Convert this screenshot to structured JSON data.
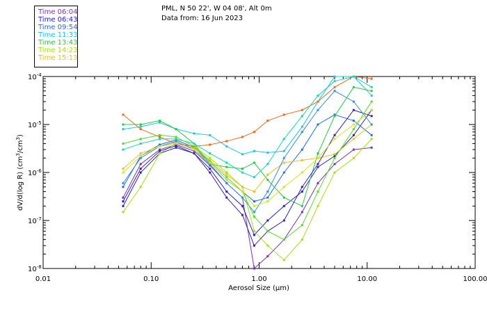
{
  "chart_data": {
    "type": "line",
    "title_line1": "PML, N 50 22', W 04 08', Alt 0m",
    "title_line2": "Data from: 16 Jun 2023",
    "xlabel": "Aerosol Size (µm)",
    "ylabel_main": "dV/d(log R) (cm",
    "ylabel_sup1": "3",
    "ylabel_mid": "/cm",
    "ylabel_sup2": "3",
    "ylabel_end": ")",
    "x_scale": "log",
    "y_scale": "log",
    "xlim": [
      0.01,
      100
    ],
    "ylim": [
      1e-08,
      0.0001
    ],
    "x_ticks": [
      {
        "v": 0.01,
        "label": "0.01"
      },
      {
        "v": 0.1,
        "label": "0.10"
      },
      {
        "v": 1,
        "label": "1.00"
      },
      {
        "v": 10,
        "label": "10.00"
      },
      {
        "v": 100,
        "label": "100.00"
      }
    ],
    "y_ticks": [
      {
        "v": 1e-08,
        "base": "10",
        "exp": "-8"
      },
      {
        "v": 1e-07,
        "base": "10",
        "exp": "-7"
      },
      {
        "v": 1e-06,
        "base": "10",
        "exp": "-6"
      },
      {
        "v": 1e-05,
        "base": "10",
        "exp": "-5"
      },
      {
        "v": 0.0001,
        "base": "10",
        "exp": "-4"
      }
    ],
    "x": [
      0.055,
      0.08,
      0.12,
      0.17,
      0.25,
      0.35,
      0.5,
      0.7,
      0.9,
      1.2,
      1.7,
      2.5,
      3.5,
      5,
      7.5,
      11
    ],
    "series": [
      {
        "name": "Time 06:04",
        "color": "#7b2fbf",
        "values": [
          3e-07,
          1.5e-06,
          3e-06,
          3.8e-06,
          2.8e-06,
          1.4e-06,
          6e-07,
          3e-07,
          1e-08,
          1.8e-08,
          4e-08,
          1.5e-07,
          6e-07,
          1.5e-06,
          3e-06,
          3.3e-06
        ]
      },
      {
        "name": "Time 06:43",
        "color": "#2222cc",
        "values": [
          2e-07,
          1e-06,
          2.5e-06,
          3.3e-06,
          2.5e-06,
          1.2e-06,
          4e-07,
          2e-07,
          5e-08,
          1e-07,
          2e-07,
          4e-07,
          1.3e-06,
          2.2e-06,
          6e-06,
          2e-05
        ]
      },
      {
        "name": "Time 09:54",
        "color": "#1e6ee8",
        "values": [
          5e-07,
          2.2e-06,
          3.8e-06,
          4.8e-06,
          3.3e-06,
          1.6e-06,
          7e-07,
          4e-07,
          2.5e-07,
          3e-07,
          1e-06,
          3e-06,
          1e-05,
          1.6e-05,
          1.2e-05,
          6e-06
        ]
      },
      {
        "name": "Time 11:33",
        "color": "#19c7e0",
        "values": [
          8e-06,
          9e-06,
          1.1e-05,
          8e-06,
          6.5e-06,
          6e-06,
          3.5e-06,
          2.4e-06,
          2.8e-06,
          2.6e-06,
          2.8e-06,
          9e-06,
          3e-05,
          0.0001,
          0.0001,
          4e-05
        ]
      },
      {
        "name": "Time 13:43",
        "color": "#22cc44",
        "values": [
          1e-05,
          1e-05,
          1.2e-05,
          8e-06,
          4e-06,
          1.5e-06,
          1.3e-06,
          1.2e-06,
          1.6e-06,
          7e-07,
          3e-07,
          2e-07,
          2.5e-06,
          1.5e-05,
          6e-05,
          5e-05
        ]
      },
      {
        "name": "Time 14:23",
        "color": "#a8e010",
        "values": [
          1.5e-07,
          5e-07,
          2.5e-06,
          4e-06,
          3.5e-06,
          2e-06,
          1e-06,
          5e-07,
          6e-08,
          3e-08,
          1.5e-08,
          4e-08,
          2e-07,
          1e-06,
          2e-06,
          5e-06
        ]
      },
      {
        "name": "Time 15:13",
        "color": "#e8c21c",
        "values": [
          1.2e-06,
          2.5e-06,
          3.5e-06,
          4.2e-06,
          3.2e-06,
          1.8e-06,
          9e-07,
          5e-07,
          4e-07,
          9e-07,
          1.6e-06,
          1.8e-06,
          2e-06,
          2.4e-06,
          5e-06,
          1e-05
        ]
      },
      {
        "name": "",
        "color": "#ee6a1c",
        "values": [
          1.6e-05,
          8e-06,
          5.5e-06,
          4e-06,
          3.5e-06,
          3.8e-06,
          4.5e-06,
          5.5e-06,
          7e-06,
          1.2e-05,
          1.6e-05,
          2e-05,
          3e-05,
          6e-05,
          0.0001,
          9e-05
        ]
      },
      {
        "name": "",
        "color": "#3a1fb8",
        "values": [
          2.5e-07,
          1.2e-06,
          2.8e-06,
          3.6e-06,
          2.5e-06,
          1e-06,
          3e-07,
          1.3e-07,
          3e-08,
          6e-08,
          1e-07,
          5e-07,
          1.5e-06,
          6e-06,
          2e-05,
          1.5e-05
        ]
      },
      {
        "name": "",
        "color": "#2f8ff0",
        "values": [
          6e-07,
          2e-06,
          3.5e-06,
          4.5e-06,
          3e-06,
          1.5e-06,
          6e-07,
          3e-07,
          1.5e-07,
          4e-07,
          2e-06,
          7e-06,
          2e-05,
          5e-05,
          3e-05,
          1e-05
        ]
      },
      {
        "name": "",
        "color": "#10d8c0",
        "values": [
          3e-06,
          4e-06,
          5e-06,
          5e-06,
          4e-06,
          2.5e-06,
          1.6e-06,
          1e-06,
          8e-07,
          1.5e-06,
          5e-06,
          1.5e-05,
          4e-05,
          8e-05,
          0.0001,
          6e-05
        ]
      },
      {
        "name": "",
        "color": "#55dd22",
        "values": [
          4e-06,
          5e-06,
          6e-06,
          5.5e-06,
          3.5e-06,
          1.7e-06,
          8e-07,
          4e-07,
          1.2e-07,
          6e-08,
          4e-08,
          8e-08,
          4e-07,
          2e-06,
          8e-06,
          3e-05
        ]
      },
      {
        "name": "",
        "color": "#d0e818",
        "values": [
          1e-06,
          2.2e-06,
          3.5e-06,
          4e-06,
          3e-06,
          1.6e-06,
          7e-07,
          4e-07,
          2e-07,
          2.5e-07,
          5e-07,
          1e-06,
          2e-06,
          5e-06,
          1e-05,
          2e-05
        ]
      }
    ]
  },
  "legend": {
    "entries": [
      {
        "label": "Time 06:04",
        "color": "#7b2fbf"
      },
      {
        "label": "Time 06:43",
        "color": "#2222cc"
      },
      {
        "label": "Time 09:54",
        "color": "#1e6ee8"
      },
      {
        "label": "Time 11:33",
        "color": "#19c7e0"
      },
      {
        "label": "Time 13:43",
        "color": "#22cc44"
      },
      {
        "label": "Time 14:23",
        "color": "#a8e010"
      },
      {
        "label": "Time 15:13",
        "color": "#e8c21c"
      }
    ]
  }
}
